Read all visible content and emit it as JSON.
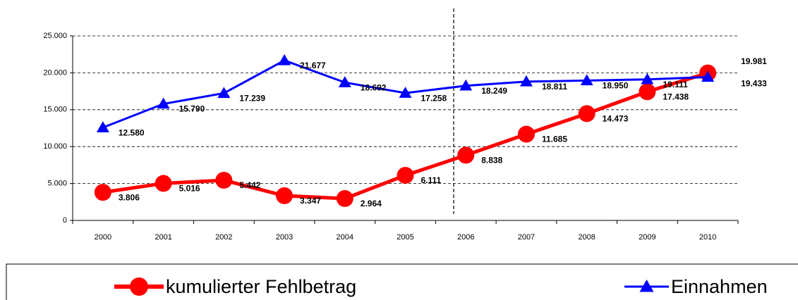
{
  "chart_data": {
    "type": "line",
    "categories": [
      "2000",
      "2001",
      "2002",
      "2003",
      "2004",
      "2005",
      "2006",
      "2007",
      "2008",
      "2009",
      "2010"
    ],
    "series": [
      {
        "name": "kumulierter Fehlbetrag",
        "color": "#ff0000",
        "marker": "circle",
        "values": [
          3806,
          5016,
          5442,
          3347,
          2964,
          6111,
          8838,
          11685,
          14473,
          17438,
          19981
        ],
        "value_labels": [
          "3.806",
          "5.016",
          "5.442",
          "3.347",
          "2.964",
          "6.111",
          "8.838",
          "11.685",
          "14.473",
          "17.438",
          "19.981"
        ]
      },
      {
        "name": "Einnahmen",
        "color": "#0000ff",
        "marker": "triangle",
        "values": [
          12580,
          15790,
          17239,
          21677,
          18692,
          17258,
          18249,
          18811,
          18950,
          19111,
          19433
        ],
        "value_labels": [
          "12.580",
          "15.790",
          "17.239",
          "21.677",
          "18.692",
          "17.258",
          "18.249",
          "18.811",
          "18.950",
          "19.111",
          "19.433"
        ]
      }
    ],
    "ylim": [
      0,
      25000
    ],
    "yticks": [
      0,
      {
        "value": 5000,
        "label": "5.000"
      },
      {
        "value": 10000,
        "label": "10.000"
      },
      {
        "value": 15000,
        "label": "15.000"
      },
      {
        "value": 20000,
        "label": "20.000"
      },
      {
        "value": 25000,
        "label": "25.000"
      }
    ],
    "grid": true,
    "legend": "bottom"
  }
}
